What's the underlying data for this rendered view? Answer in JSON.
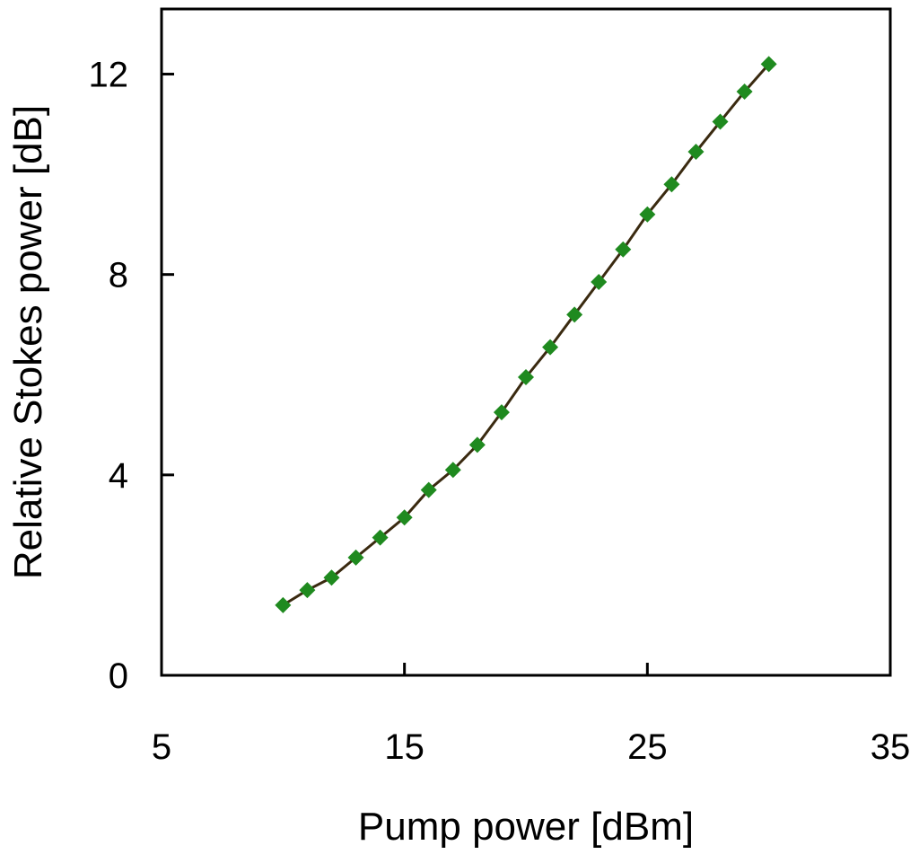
{
  "chart_data": {
    "type": "line",
    "title": "",
    "xlabel": "Pump power [dBm]",
    "ylabel": "Relative Stokes power [dB]",
    "xlim": [
      5,
      35
    ],
    "ylim": [
      0,
      13.3
    ],
    "xticks": [
      5,
      15,
      25,
      35
    ],
    "yticks": [
      0,
      4,
      8,
      12
    ],
    "grid": false,
    "legend": "none",
    "series": [
      {
        "marker": "diamond",
        "marker_color": "#1f8a1f",
        "line_color": "#3a2a10",
        "x": [
          10,
          11,
          12,
          13,
          14,
          15,
          16,
          17,
          18,
          19,
          20,
          21,
          22,
          23,
          24,
          25,
          26,
          27,
          28,
          29,
          30
        ],
        "y": [
          1.4,
          1.7,
          1.95,
          2.35,
          2.75,
          3.15,
          3.7,
          4.1,
          4.6,
          5.25,
          5.95,
          6.55,
          7.2,
          7.85,
          8.5,
          9.2,
          9.8,
          10.45,
          11.05,
          11.65,
          12.2
        ]
      }
    ]
  }
}
